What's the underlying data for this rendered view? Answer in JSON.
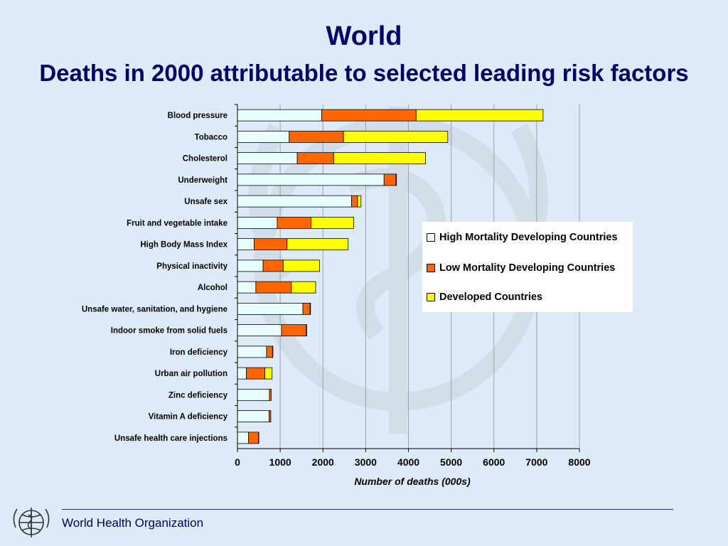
{
  "slide": {
    "title": "World",
    "subtitle": "Deaths in 2000 attributable to selected leading risk factors",
    "footer": "World Health Organization"
  },
  "colors": {
    "background": "#dcebf7",
    "title": "#000066",
    "high_mortality": "#e8ffff",
    "low_mortality": "#ff6600",
    "developed": "#ffff00"
  },
  "chart_data": {
    "type": "bar",
    "orientation": "horizontal",
    "stacked": true,
    "categories": [
      "Blood pressure",
      "Tobacco",
      "Cholesterol",
      "Underweight",
      "Unsafe sex",
      "Fruit and vegetable intake",
      "High Body Mass Index",
      "Physical inactivity",
      "Alcohol",
      "Unsafe water, sanitation, and hygiene",
      "Indoor smoke from solid fuels",
      "Iron deficiency",
      "Urban air pollution",
      "Zinc deficiency",
      "Vitamin A  deficiency",
      "Unsafe health care injections"
    ],
    "series": [
      {
        "name": "High Mortality Developing Countries",
        "color": "#e8ffff",
        "values": [
          1970,
          1210,
          1400,
          3430,
          2670,
          930,
          390,
          600,
          430,
          1530,
          1030,
          680,
          210,
          750,
          740,
          260
        ]
      },
      {
        "name": "Low Mortality Developing Countries",
        "color": "#ff6600",
        "values": [
          2210,
          1270,
          850,
          280,
          140,
          790,
          770,
          470,
          830,
          170,
          580,
          140,
          430,
          40,
          40,
          230
        ]
      },
      {
        "name": "Developed Countries",
        "color": "#ffff00",
        "values": [
          2970,
          2440,
          2150,
          10,
          80,
          1000,
          1430,
          850,
          570,
          10,
          10,
          10,
          170,
          0,
          0,
          10
        ]
      }
    ],
    "xlabel": "Number of deaths (000s)",
    "xlim": [
      0,
      8000
    ],
    "xticks": [
      "0",
      "1000",
      "2000",
      "3000",
      "4000",
      "5000",
      "6000",
      "7000",
      "8000"
    ],
    "gridlines": "vertical",
    "legend_position": "right"
  }
}
